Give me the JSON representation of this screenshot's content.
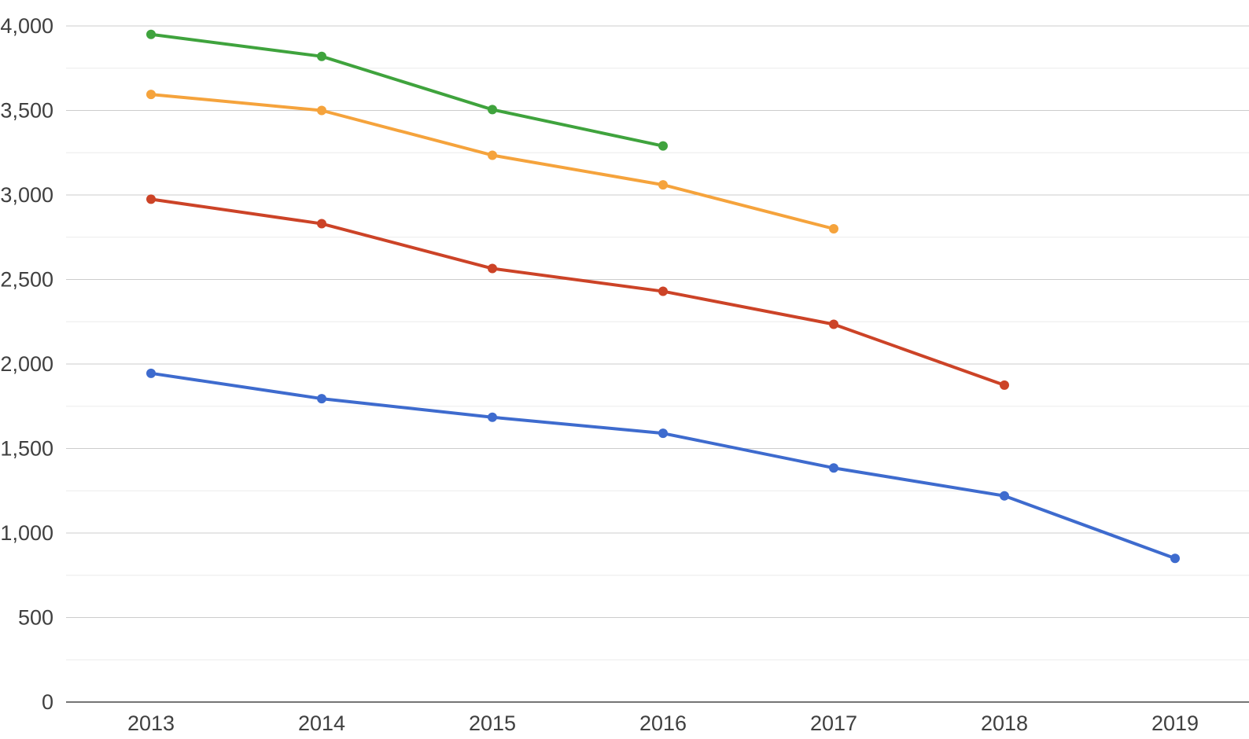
{
  "chart_data": {
    "type": "line",
    "title": "",
    "xlabel": "",
    "ylabel": "",
    "categories": [
      "2013",
      "2014",
      "2015",
      "2016",
      "2017",
      "2018",
      "2019"
    ],
    "series": [
      {
        "name": "green-series",
        "color": "#3FA33D",
        "values": [
          3950,
          3820,
          3505,
          3290,
          null,
          null,
          null
        ]
      },
      {
        "name": "orange-series",
        "color": "#F5A33C",
        "values": [
          3595,
          3500,
          3235,
          3060,
          2800,
          null,
          null
        ]
      },
      {
        "name": "red-series",
        "color": "#CC4327",
        "values": [
          2975,
          2830,
          2565,
          2430,
          2235,
          1875,
          null
        ]
      },
      {
        "name": "blue-series",
        "color": "#3E6BCE",
        "values": [
          1945,
          1795,
          1685,
          1590,
          1385,
          1220,
          850
        ]
      }
    ],
    "ylim": [
      0,
      4000
    ],
    "y_major_step": 500,
    "y_minor_step": 250,
    "y_tick_labels": [
      "0",
      "500",
      "1,000",
      "1,500",
      "2,000",
      "2,500",
      "3,000",
      "3,500",
      "4,000"
    ],
    "grid": true,
    "legend_position": "none",
    "marker": "circle",
    "colors": {
      "background": "#ffffff",
      "axis_line": "#757575",
      "major_gridline": "#cccccc",
      "minor_gridline": "#ebebeb",
      "tick_label": "#404040"
    }
  }
}
